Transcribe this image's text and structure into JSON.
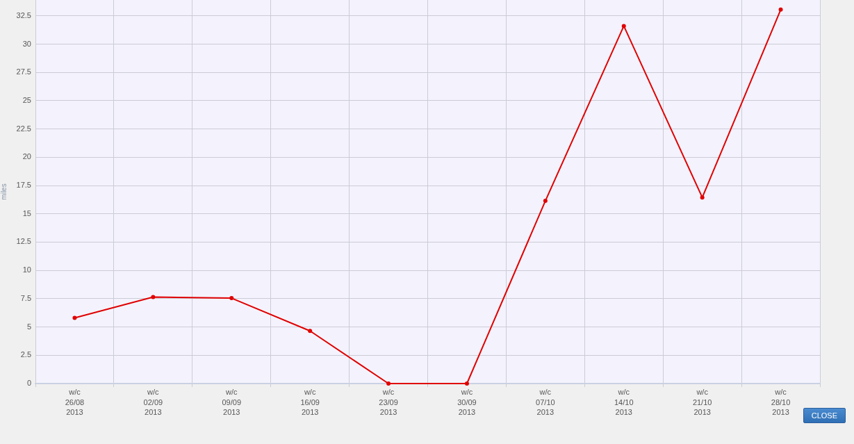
{
  "chart_data": {
    "type": "line",
    "categories": [
      "w/c\n26/08\n2013",
      "w/c\n02/09\n2013",
      "w/c\n09/09\n2013",
      "w/c\n16/09\n2013",
      "w/c\n23/09\n2013",
      "w/c\n30/09\n2013",
      "w/c\n07/10\n2013",
      "w/c\n14/10\n2013",
      "w/c\n21/10\n2013",
      "w/c\n28/10\n2013"
    ],
    "series": [
      {
        "color": "#e00000",
        "values": [
          5.8,
          7.65,
          7.55,
          4.65,
          0,
          0,
          16.15,
          31.6,
          16.45,
          33.05
        ]
      }
    ],
    "ylabel": "miles",
    "ylim": [
      0,
      33.9
    ],
    "yticks": [
      0,
      2.5,
      5,
      7.5,
      10,
      12.5,
      15,
      17.5,
      20,
      22.5,
      25,
      27.5,
      30,
      32.5
    ],
    "grid": true,
    "marker": "circle",
    "line_style": "solid",
    "annotations": [
      "CLOSE"
    ]
  }
}
